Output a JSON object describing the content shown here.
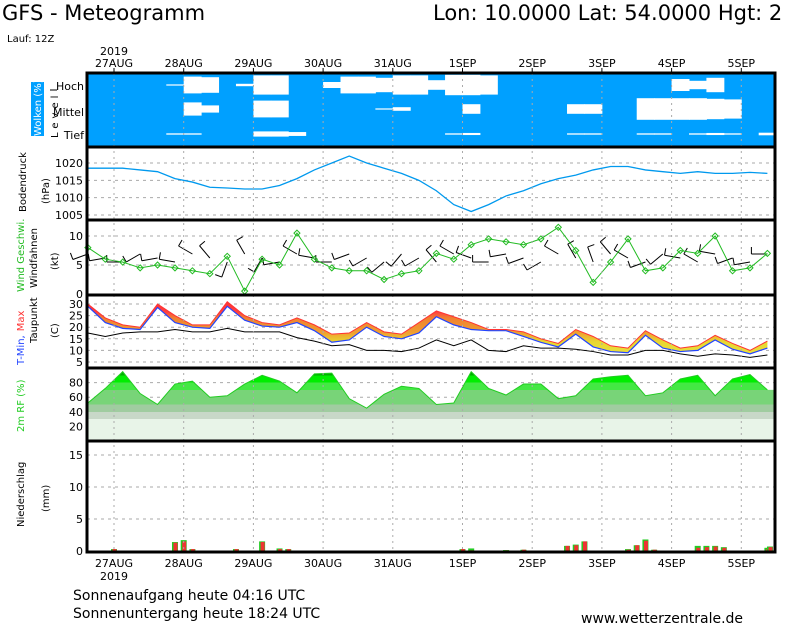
{
  "header": {
    "title": "GFS - Meteogramm",
    "location": "Lon: 10.0000 Lat: 54.0000 Hgt: 2",
    "run": "Lauf: 12Z",
    "year": "2019"
  },
  "footer": {
    "sunrise": "Sonnenaufgang heute 04:16 UTC",
    "sunset": "Sonnenuntergang heute 18:24 UTC",
    "website": "www.wetterzentrale.de"
  },
  "colors": {
    "cloud": "#00a0ff",
    "pressure": "#0099ee",
    "wind": "#22bb22",
    "tmin": "#2244ff",
    "tmax": "#ff3333",
    "dewpoint": "#000000",
    "rh": "#22cc22"
  },
  "chart_data": [
    {
      "type": "heatmap",
      "title": "Wolken (%)",
      "ylabel": "Level",
      "levels": [
        "Hoch",
        "Mittel",
        "Tief"
      ],
      "date_labels": [
        "27AUG",
        "28AUG",
        "29AUG",
        "30AUG",
        "31AUG",
        "1SEP",
        "2SEP",
        "3SEP",
        "4SEP",
        "5SEP"
      ],
      "hours": [
        -9,
        -3,
        3,
        9,
        15,
        21,
        27,
        33,
        39,
        45,
        51,
        57,
        63,
        69,
        75,
        81,
        87,
        93,
        99,
        105,
        111,
        117,
        123,
        129,
        135,
        141,
        147,
        153,
        159,
        165,
        171,
        177,
        183,
        189,
        195,
        201,
        207,
        213,
        219,
        225
      ],
      "cover": {
        "Hoch": [
          100,
          100,
          100,
          100,
          100,
          95,
          30,
          35,
          100,
          90,
          20,
          20,
          100,
          100,
          75,
          30,
          30,
          40,
          20,
          20,
          60,
          15,
          15,
          20,
          100,
          100,
          100,
          100,
          100,
          100,
          100,
          100,
          100,
          100,
          50,
          65,
          40,
          100,
          100,
          100
        ],
        "Mittel": [
          100,
          100,
          100,
          100,
          100,
          100,
          45,
          70,
          100,
          100,
          30,
          30,
          100,
          100,
          100,
          100,
          100,
          95,
          85,
          100,
          100,
          100,
          60,
          100,
          100,
          100,
          100,
          100,
          60,
          60,
          100,
          100,
          10,
          10,
          10,
          10,
          15,
          20,
          100,
          100
        ],
        "Tief": [
          100,
          100,
          100,
          100,
          100,
          95,
          95,
          100,
          100,
          100,
          80,
          80,
          85,
          100,
          100,
          100,
          100,
          100,
          100,
          100,
          100,
          95,
          92,
          100,
          100,
          100,
          100,
          100,
          95,
          95,
          100,
          100,
          95,
          95,
          100,
          95,
          92,
          95,
          100,
          90
        ]
      }
    },
    {
      "type": "line",
      "ylabel": "Bodendruck",
      "unit": "(hPa)",
      "yticks": [
        1005,
        1010,
        1015,
        1020
      ],
      "ylim": [
        1003.6,
        1024.6
      ],
      "values": [
        1018.5,
        1018.5,
        1018.5,
        1018,
        1017.5,
        1015.5,
        1014.5,
        1013,
        1012.8,
        1012.5,
        1012.5,
        1013.5,
        1015.5,
        1018,
        1020,
        1022,
        1020,
        1018.5,
        1017,
        1015,
        1012,
        1008,
        1006,
        1008,
        1010.5,
        1012,
        1014,
        1015.5,
        1016.5,
        1018,
        1019,
        1019,
        1018,
        1017.5,
        1017,
        1017.5,
        1017,
        1017,
        1017.3,
        1017
      ]
    },
    {
      "type": "line",
      "ylabel_1": "Wind Geschwi.",
      "ylabel_2": "Windfahnen",
      "unit": "(kt)",
      "yticks": [
        0,
        5,
        10
      ],
      "ylim": [
        0,
        13.4
      ],
      "speed": [
        8,
        6,
        5.5,
        4.5,
        5,
        4.5,
        4,
        3.5,
        6.5,
        0.5,
        6,
        5,
        10.5,
        6,
        4.5,
        4,
        4,
        2.5,
        3.5,
        4,
        7,
        6,
        8.5,
        9.5,
        9,
        8.5,
        9.5,
        11.5,
        7.5,
        2,
        5.5,
        9.5,
        4,
        4.5,
        7.5,
        7,
        10,
        4,
        4.5,
        7
      ],
      "direction": [
        250,
        260,
        270,
        240,
        260,
        280,
        300,
        320,
        200,
        330,
        210,
        260,
        300,
        280,
        270,
        250,
        240,
        230,
        220,
        240,
        320,
        300,
        290,
        270,
        260,
        250,
        240,
        300,
        330,
        340,
        320,
        300,
        250,
        230,
        280,
        300,
        280,
        250,
        260,
        270
      ]
    },
    {
      "type": "area",
      "ylabel_1": "T-Min,",
      "ylabel_2": "Max",
      "ylabel_3": "Taupunkt",
      "unit": "(C)",
      "yticks": [
        5,
        10,
        15,
        20,
        25,
        30
      ],
      "ylim": [
        0,
        33.9
      ],
      "tmin": [
        29,
        22,
        19.5,
        19,
        28.5,
        22,
        20,
        19.5,
        29,
        23,
        20.5,
        20,
        22,
        18.5,
        13.5,
        14.5,
        20,
        16,
        15,
        17.5,
        24.5,
        21,
        19,
        18.5,
        18.5,
        16,
        13.5,
        11.5,
        17,
        11.5,
        9.5,
        9,
        16.5,
        11,
        9.5,
        10,
        14.5,
        10.5,
        8.5,
        11
      ],
      "tmax": [
        30,
        24,
        21,
        20,
        30,
        25,
        21,
        21,
        31,
        25,
        22,
        21,
        24,
        21,
        17,
        17.5,
        22,
        18,
        17,
        22,
        27,
        24.5,
        22,
        19,
        19,
        18,
        15,
        13,
        19,
        16,
        12,
        11,
        18.5,
        14.5,
        11,
        12,
        16.5,
        13,
        10,
        14
      ],
      "dewpoint": [
        17.5,
        16,
        17.5,
        18,
        18,
        19,
        18,
        18,
        19.5,
        18,
        18,
        18,
        15.5,
        14,
        12,
        12.5,
        10,
        10,
        9.5,
        11,
        14.5,
        12,
        14.5,
        10,
        9.5,
        12,
        11,
        11,
        10.5,
        9.5,
        8,
        8,
        10,
        10,
        8.5,
        7.5,
        8.5,
        8,
        7,
        8
      ]
    },
    {
      "type": "area",
      "ylabel": "2m RF (%)",
      "yticks": [
        20,
        40,
        60,
        80
      ],
      "ylim": [
        0,
        100
      ],
      "values": [
        52,
        72,
        95,
        65,
        50,
        78,
        82,
        60,
        62,
        78,
        90,
        82,
        66,
        92,
        93,
        58,
        45,
        64,
        75,
        72,
        50,
        52,
        95,
        72,
        63,
        78,
        78,
        58,
        62,
        85,
        88,
        90,
        62,
        66,
        85,
        90,
        62,
        85,
        91,
        70
      ]
    },
    {
      "type": "bar",
      "ylabel": "Niederschlag",
      "unit": "(mm)",
      "yticks": [
        0,
        5,
        10,
        15
      ],
      "ylim": [
        0,
        17
      ],
      "bars": [
        {
          "h": 0,
          "total": 0.3,
          "conv": 0.3
        },
        {
          "h": 21,
          "total": 1.4,
          "conv": 1.3
        },
        {
          "h": 24,
          "total": 1.7,
          "conv": 1.5
        },
        {
          "h": 27,
          "total": 0.3,
          "conv": 0.3
        },
        {
          "h": 42,
          "total": 0.3,
          "conv": 0.3
        },
        {
          "h": 51,
          "total": 1.5,
          "conv": 1.4
        },
        {
          "h": 57,
          "total": 0.4,
          "conv": 0.3
        },
        {
          "h": 60,
          "total": 0.3,
          "conv": 0.3
        },
        {
          "h": 120,
          "total": 0.3,
          "conv": 0.3
        },
        {
          "h": 123,
          "total": 0.4,
          "conv": 0.1
        },
        {
          "h": 135,
          "total": 0.15,
          "conv": 0.1
        },
        {
          "h": 141,
          "total": 0.2,
          "conv": 0.2
        },
        {
          "h": 156,
          "total": 0.8,
          "conv": 0.8
        },
        {
          "h": 159,
          "total": 1.0,
          "conv": 0.9
        },
        {
          "h": 162,
          "total": 1.5,
          "conv": 1.5
        },
        {
          "h": 177,
          "total": 0.3,
          "conv": 0.2
        },
        {
          "h": 180,
          "total": 0.9,
          "conv": 0.9
        },
        {
          "h": 183,
          "total": 1.8,
          "conv": 1.6
        },
        {
          "h": 186,
          "total": 0.2,
          "conv": 0.2
        },
        {
          "h": 201,
          "total": 0.8,
          "conv": 0.5
        },
        {
          "h": 204,
          "total": 0.8,
          "conv": 0.6
        },
        {
          "h": 207,
          "total": 0.8,
          "conv": 0.7
        },
        {
          "h": 210,
          "total": 0.6,
          "conv": 0.5
        },
        {
          "h": 225,
          "total": 0.5,
          "conv": 0.3
        },
        {
          "h": 228,
          "total": 0.7,
          "conv": 0.6
        }
      ]
    }
  ]
}
